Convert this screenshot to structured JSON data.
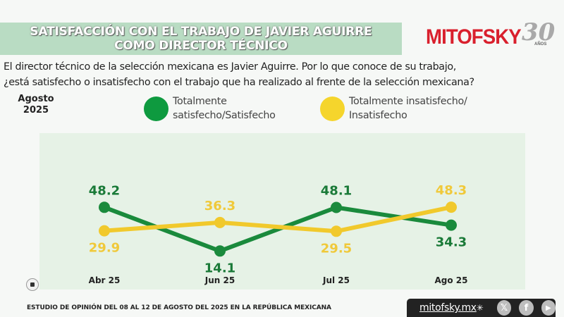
{
  "header": {
    "title_line1": "SATISFACCIÓN CON EL TRABAJO DE JAVIER AGUIRRE",
    "title_line2": "COMO DIRECTOR TÉCNICO",
    "logo": {
      "brand": "MITOFSKY",
      "anniversary": "30",
      "anniversary_suffix": "AÑOS",
      "brand_color": "#d9202d"
    }
  },
  "question": {
    "line1": "El director técnico de la selección mexicana es Javier Aguirre. Por lo que conoce de su trabajo,",
    "line2": "¿está satisfecho o insatisfecho con el trabajo que ha realizado al frente de la selección mexicana?"
  },
  "period": {
    "month": "Agosto",
    "year": "2025"
  },
  "legend": [
    {
      "line1": "Totalmente",
      "line2": "satisfecho/Satisfecho",
      "color": "#0e9a3f"
    },
    {
      "line1": "Totalmente insatisfecho/",
      "line2": "Insatisfecho",
      "color": "#f2d22a"
    }
  ],
  "chart_data": {
    "type": "line",
    "title": "Satisfacción con el trabajo de Javier Aguirre como director técnico",
    "xlabel": "",
    "ylabel": "",
    "categories": [
      "Abr 25",
      "Jun 25",
      "Jul 25",
      "Ago 25"
    ],
    "series": [
      {
        "name": "Totalmente satisfecho/Satisfecho",
        "values": [
          48.2,
          14.1,
          48.1,
          34.3
        ],
        "color": "#1a8a3c",
        "label_color": "#1a7a38"
      },
      {
        "name": "Totalmente insatisfecho/Insatisfecho",
        "values": [
          29.9,
          36.3,
          29.5,
          48.3
        ],
        "color": "#f1c92c",
        "label_color": "#f0c93a"
      }
    ],
    "ylim": [
      0,
      60
    ],
    "grid": false,
    "legend_position": "top",
    "data_labels": true
  },
  "footer": {
    "study_note": "ESTUDIO DE OPINIÓN DEL 08 AL 12 DE AGOSTO DEL 2025 EN LA REPÚBLICA MEXICANA",
    "website": "mitofsky.mx",
    "social": [
      {
        "name": "x-icon",
        "glyph": "𝕏"
      },
      {
        "name": "facebook-icon",
        "glyph": "f"
      },
      {
        "name": "youtube-icon",
        "glyph": "▶"
      }
    ]
  }
}
